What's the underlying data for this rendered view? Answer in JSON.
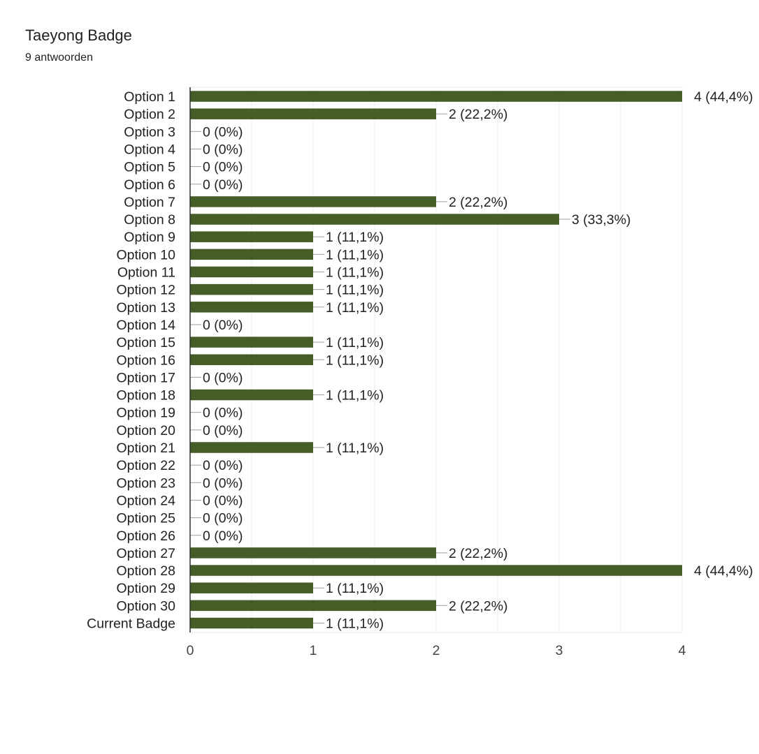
{
  "header": {
    "title": "Taeyong Badge",
    "subtitle": "9 antwoorden"
  },
  "colors": {
    "bar": "#455e28",
    "axis": "#333333",
    "grid": "#ebebeb",
    "leader": "#9e9e9e"
  },
  "chart_data": {
    "type": "bar",
    "orientation": "horizontal",
    "title": "Taeyong Badge",
    "subtitle": "9 antwoorden",
    "categories": [
      "Option 1",
      "Option 2",
      "Option 3",
      "Option 4",
      "Option 5",
      "Option 6",
      "Option 7",
      "Option 8",
      "Option 9",
      "Option 10",
      "Option 11",
      "Option 12",
      "Option 13",
      "Option 14",
      "Option 15",
      "Option 16",
      "Option 17",
      "Option 18",
      "Option 19",
      "Option 20",
      "Option 21",
      "Option 22",
      "Option 23",
      "Option 24",
      "Option 25",
      "Option 26",
      "Option 27",
      "Option 28",
      "Option 29",
      "Option 30",
      "Current Badge"
    ],
    "values": [
      4,
      2,
      0,
      0,
      0,
      0,
      2,
      3,
      1,
      1,
      1,
      1,
      1,
      0,
      1,
      1,
      0,
      1,
      0,
      0,
      1,
      0,
      0,
      0,
      0,
      0,
      2,
      4,
      1,
      2,
      1
    ],
    "data_labels": [
      "4 (44,4%)",
      "2 (22,2%)",
      "0 (0%)",
      "0 (0%)",
      "0 (0%)",
      "0 (0%)",
      "2 (22,2%)",
      "3 (33,3%)",
      "1 (11,1%)",
      "1 (11,1%)",
      "1 (11,1%)",
      "1 (11,1%)",
      "1 (11,1%)",
      "0 (0%)",
      "1 (11,1%)",
      "1 (11,1%)",
      "0 (0%)",
      "1 (11,1%)",
      "0 (0%)",
      "0 (0%)",
      "1 (11,1%)",
      "0 (0%)",
      "0 (0%)",
      "0 (0%)",
      "0 (0%)",
      "0 (0%)",
      "2 (22,2%)",
      "4 (44,4%)",
      "1 (11,1%)",
      "2 (22,2%)",
      "1 (11,1%)"
    ],
    "xlim": [
      0,
      4
    ],
    "x_ticks": [
      "0",
      "1",
      "2",
      "3",
      "4"
    ],
    "grid": true,
    "legend": "none"
  }
}
